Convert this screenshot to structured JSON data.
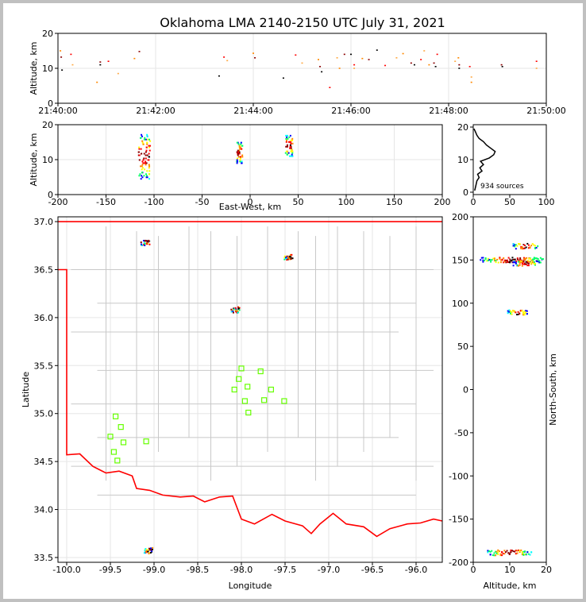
{
  "title": "Oklahoma LMA 2140-2150 UTC July 31, 2021",
  "colors": {
    "background": "#c0c0c0",
    "figure": "#ffffff",
    "state_border": "#ff0000",
    "county_lines": "#c8c8c8",
    "stations": "#66ff00",
    "grid": "#e6e6e6"
  },
  "chart_data": [
    {
      "id": "time-height",
      "type": "scatter",
      "xlabel": "",
      "ylabel": "Altitude, km",
      "xlim": [
        "21:40:00",
        "21:50:00"
      ],
      "ylim": [
        0,
        20
      ],
      "xticks": [
        "21:40:00",
        "21:42:00",
        "21:44:00",
        "21:46:00",
        "21:48:00",
        "21:50:00"
      ],
      "yticks": [
        0,
        10,
        20
      ],
      "grid": true,
      "points": [
        {
          "t": "21:40:03",
          "alt": 15.0
        },
        {
          "t": "21:40:04",
          "alt": 13.2
        },
        {
          "t": "21:40:05",
          "alt": 9.5
        },
        {
          "t": "21:40:16",
          "alt": 14.0
        },
        {
          "t": "21:40:18",
          "alt": 11.0
        },
        {
          "t": "21:40:48",
          "alt": 6.0
        },
        {
          "t": "21:40:52",
          "alt": 11.8
        },
        {
          "t": "21:40:52",
          "alt": 11.0
        },
        {
          "t": "21:41:02",
          "alt": 12.0
        },
        {
          "t": "21:41:14",
          "alt": 8.5
        },
        {
          "t": "21:41:34",
          "alt": 12.8
        },
        {
          "t": "21:41:40",
          "alt": 14.8
        },
        {
          "t": "21:43:18",
          "alt": 7.8
        },
        {
          "t": "21:43:24",
          "alt": 13.2
        },
        {
          "t": "21:43:28",
          "alt": 12.2
        },
        {
          "t": "21:44:00",
          "alt": 14.3
        },
        {
          "t": "21:44:02",
          "alt": 13.0
        },
        {
          "t": "21:44:37",
          "alt": 7.2
        },
        {
          "t": "21:44:52",
          "alt": 13.8
        },
        {
          "t": "21:45:00",
          "alt": 11.5
        },
        {
          "t": "21:45:20",
          "alt": 12.5
        },
        {
          "t": "21:45:22",
          "alt": 10.5
        },
        {
          "t": "21:45:24",
          "alt": 9.0
        },
        {
          "t": "21:45:34",
          "alt": 4.5
        },
        {
          "t": "21:45:43",
          "alt": 13.0
        },
        {
          "t": "21:45:46",
          "alt": 10.0
        },
        {
          "t": "21:45:52",
          "alt": 14.0
        },
        {
          "t": "21:46:00",
          "alt": 14.0
        },
        {
          "t": "21:46:04",
          "alt": 11.0
        },
        {
          "t": "21:46:04",
          "alt": 10.0
        },
        {
          "t": "21:46:14",
          "alt": 12.8
        },
        {
          "t": "21:46:22",
          "alt": 12.5
        },
        {
          "t": "21:46:32",
          "alt": 15.2
        },
        {
          "t": "21:46:42",
          "alt": 10.8
        },
        {
          "t": "21:46:56",
          "alt": 13.0
        },
        {
          "t": "21:47:04",
          "alt": 14.2
        },
        {
          "t": "21:47:14",
          "alt": 11.5
        },
        {
          "t": "21:47:18",
          "alt": 11.0
        },
        {
          "t": "21:47:26",
          "alt": 12.5
        },
        {
          "t": "21:47:30",
          "alt": 15.0
        },
        {
          "t": "21:47:36",
          "alt": 11.0
        },
        {
          "t": "21:47:42",
          "alt": 11.5
        },
        {
          "t": "21:47:44",
          "alt": 10.5
        },
        {
          "t": "21:47:46",
          "alt": 14.0
        },
        {
          "t": "21:48:08",
          "alt": 12.0
        },
        {
          "t": "21:48:12",
          "alt": 13.0
        },
        {
          "t": "21:48:13",
          "alt": 11.0
        },
        {
          "t": "21:48:13",
          "alt": 10.0
        },
        {
          "t": "21:48:26",
          "alt": 10.5
        },
        {
          "t": "21:48:28",
          "alt": 7.5
        },
        {
          "t": "21:48:28",
          "alt": 6.0
        },
        {
          "t": "21:49:05",
          "alt": 11.0
        },
        {
          "t": "21:49:06",
          "alt": 10.5
        },
        {
          "t": "21:49:48",
          "alt": 12.0
        },
        {
          "t": "21:49:48",
          "alt": 10.0
        }
      ]
    },
    {
      "id": "ew-altitude",
      "type": "scatter",
      "xlabel": "East-West, km",
      "ylabel": "Altitude, km",
      "xlim": [
        -200,
        200
      ],
      "ylim": [
        0,
        20
      ],
      "xticks": [
        -200,
        -150,
        -100,
        -50,
        0,
        50,
        100,
        150,
        200
      ],
      "yticks": [
        0,
        10,
        20
      ],
      "grid": true,
      "clusters": [
        {
          "x": -110,
          "alt_min": 4.5,
          "alt_max": 17.5,
          "x_spread": 6
        },
        {
          "x": -11,
          "alt_min": 9.0,
          "alt_max": 15.0,
          "x_spread": 3
        },
        {
          "x": 41,
          "alt_min": 11.0,
          "alt_max": 17.0,
          "x_spread": 4
        }
      ]
    },
    {
      "id": "altitude-histogram",
      "type": "line",
      "xlim": [
        0,
        100
      ],
      "ylim": [
        0,
        20
      ],
      "xticks": [
        0,
        50,
        100
      ],
      "yticks": [
        0,
        10,
        20
      ],
      "annotation": "934 sources",
      "profile": [
        {
          "alt": 0.5,
          "count": 2
        },
        {
          "alt": 1.5,
          "count": 3
        },
        {
          "alt": 2.5,
          "count": 4
        },
        {
          "alt": 3.5,
          "count": 5
        },
        {
          "alt": 4.5,
          "count": 8
        },
        {
          "alt": 5.5,
          "count": 6
        },
        {
          "alt": 6.5,
          "count": 12
        },
        {
          "alt": 7.5,
          "count": 9
        },
        {
          "alt": 8.5,
          "count": 14
        },
        {
          "alt": 9.5,
          "count": 10
        },
        {
          "alt": 10.5,
          "count": 22
        },
        {
          "alt": 11.5,
          "count": 28
        },
        {
          "alt": 12.5,
          "count": 30
        },
        {
          "alt": 13.5,
          "count": 24
        },
        {
          "alt": 14.5,
          "count": 18
        },
        {
          "alt": 15.5,
          "count": 14
        },
        {
          "alt": 16.5,
          "count": 8
        },
        {
          "alt": 17.5,
          "count": 5
        },
        {
          "alt": 18.5,
          "count": 3
        },
        {
          "alt": 19.5,
          "count": 1
        }
      ]
    },
    {
      "id": "plan-view",
      "type": "scatter",
      "xlabel": "Longitude",
      "ylabel": "Latitude",
      "xlim": [
        -100.1,
        -95.7
      ],
      "ylim": [
        33.45,
        37.05
      ],
      "xticks": [
        -100.0,
        -99.5,
        -99.0,
        -98.5,
        -98.0,
        -97.5,
        -97.0,
        -96.5,
        -96.0
      ],
      "yticks": [
        33.5,
        34.0,
        34.5,
        35.0,
        35.5,
        36.0,
        36.5,
        37.0
      ],
      "grid": true,
      "clusters": [
        {
          "lon": -99.1,
          "lat": 36.78
        },
        {
          "lon": -97.46,
          "lat": 36.63
        },
        {
          "lon": -98.07,
          "lat": 36.08
        },
        {
          "lon": -99.06,
          "lat": 33.57
        }
      ],
      "stations": [
        {
          "lon": -99.44,
          "lat": 34.97
        },
        {
          "lon": -99.38,
          "lat": 34.86
        },
        {
          "lon": -99.5,
          "lat": 34.76
        },
        {
          "lon": -99.35,
          "lat": 34.7
        },
        {
          "lon": -99.46,
          "lat": 34.6
        },
        {
          "lon": -99.42,
          "lat": 34.51
        },
        {
          "lon": -99.09,
          "lat": 34.71
        },
        {
          "lon": -98.0,
          "lat": 35.47
        },
        {
          "lon": -98.03,
          "lat": 35.36
        },
        {
          "lon": -97.78,
          "lat": 35.44
        },
        {
          "lon": -97.93,
          "lat": 35.28
        },
        {
          "lon": -98.08,
          "lat": 35.25
        },
        {
          "lon": -97.66,
          "lat": 35.25
        },
        {
          "lon": -97.96,
          "lat": 35.13
        },
        {
          "lon": -97.74,
          "lat": 35.14
        },
        {
          "lon": -97.51,
          "lat": 35.13
        },
        {
          "lon": -97.92,
          "lat": 35.01
        }
      ]
    },
    {
      "id": "altitude-ns",
      "type": "scatter",
      "xlabel": "Altitude, km",
      "ylabel": "North-South, km",
      "xlim": [
        0,
        20
      ],
      "ylim": [
        -200,
        200
      ],
      "xticks": [
        0,
        10,
        20
      ],
      "yticks": [
        -200,
        -150,
        -100,
        -50,
        0,
        50,
        100,
        150,
        200
      ],
      "clusters": [
        {
          "ns": 166,
          "alt_min": 11.0,
          "alt_max": 18.0
        },
        {
          "ns": 150,
          "alt_min": 2.0,
          "alt_max": 19.5
        },
        {
          "ns": 146,
          "alt_min": 11.0,
          "alt_max": 18.0
        },
        {
          "ns": 89,
          "alt_min": 9.5,
          "alt_max": 15.0
        },
        {
          "ns": -189,
          "alt_min": 4.0,
          "alt_max": 16.0
        }
      ]
    }
  ]
}
